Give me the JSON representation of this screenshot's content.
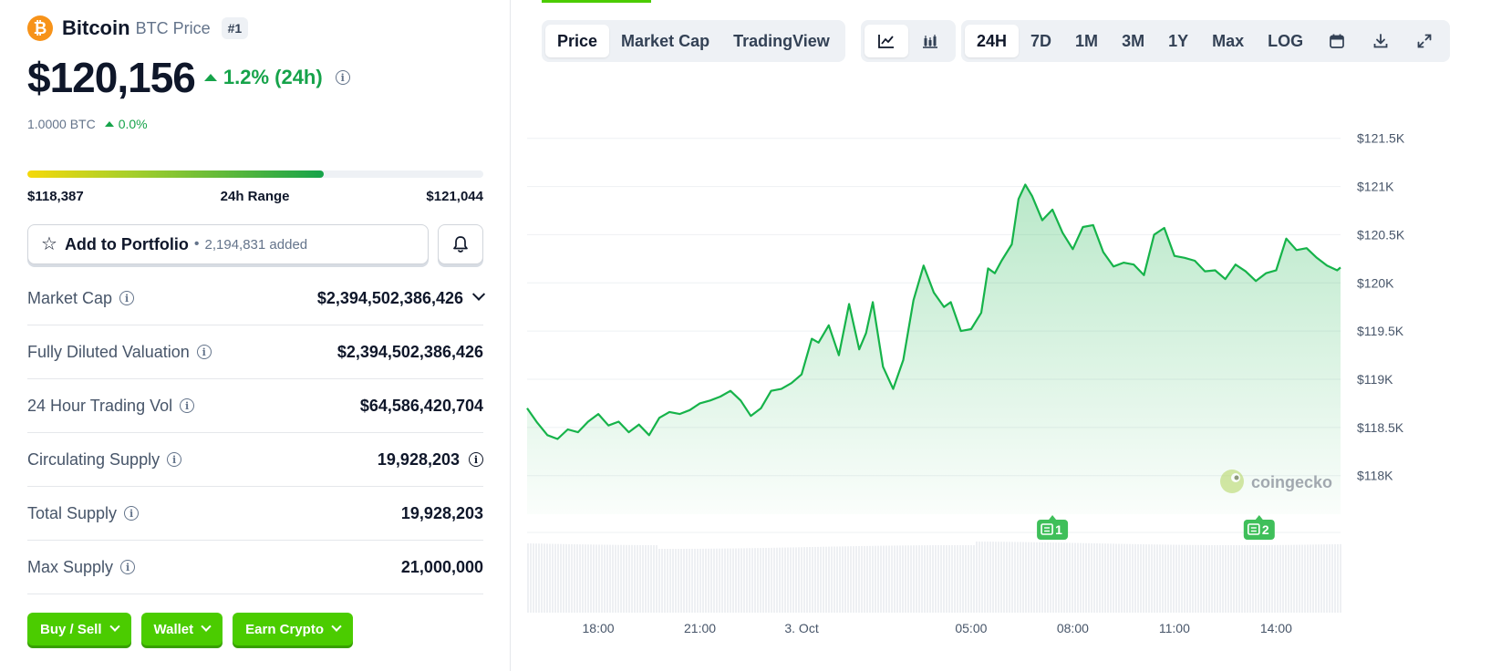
{
  "coin": {
    "logo_symbol": "₿",
    "name": "Bitcoin",
    "ticker_label": "BTC Price",
    "rank": "#1",
    "price": "$120,156",
    "change_24h": "1.2% (24h)",
    "btc_value": "1.0000 BTC",
    "btc_change": "0.0%"
  },
  "range": {
    "low": "$118,387",
    "label": "24h Range",
    "high": "$121,044",
    "fill_fraction": 0.65
  },
  "portfolio": {
    "label": "Add to Portfolio",
    "separator": "•",
    "count": "2,194,831 added"
  },
  "stats": [
    {
      "label": "Market Cap",
      "value": "$2,394,502,386,426"
    },
    {
      "label": "Fully Diluted Valuation",
      "value": "$2,394,502,386,426"
    },
    {
      "label": "24 Hour Trading Vol",
      "value": "$64,586,420,704"
    },
    {
      "label": "Circulating Supply",
      "value": "19,928,203"
    },
    {
      "label": "Total Supply",
      "value": "19,928,203"
    },
    {
      "label": "Max Supply",
      "value": "21,000,000"
    }
  ],
  "actions": {
    "buy_sell": "Buy / Sell",
    "wallet": "Wallet",
    "earn": "Earn Crypto"
  },
  "tabs": {
    "view": [
      "Price",
      "Market Cap",
      "TradingView"
    ],
    "ranges": [
      "24H",
      "7D",
      "1M",
      "3M",
      "1Y",
      "Max",
      "LOG"
    ],
    "active_view": "Price",
    "active_range": "24H"
  },
  "icons": [
    "line-chart-icon",
    "candlestick-icon",
    "calendar-icon",
    "download-icon",
    "expand-icon",
    "info-icon",
    "star-icon",
    "bell-icon"
  ],
  "colors": {
    "accent_green": "#4bcc00",
    "positive": "#16a34a",
    "line": "#16b34a",
    "bitcoin_orange": "#f7931a"
  },
  "watermark": "coingecko",
  "chart_data": {
    "type": "area",
    "ylim": [
      117600,
      121800
    ],
    "y_ticks": [
      "$121.5K",
      "$121K",
      "$120.5K",
      "$120K",
      "$119.5K",
      "$119K",
      "$118.5K",
      "$118K"
    ],
    "y_tick_values": [
      121500,
      121000,
      120500,
      120000,
      119500,
      119000,
      118500,
      118000
    ],
    "x_ticks": [
      "18:00",
      "21:00",
      "3. Oct",
      "05:00",
      "08:00",
      "11:00",
      "14:00"
    ],
    "x_tick_hours": [
      2.1,
      5.1,
      8.1,
      13.1,
      16.1,
      19.1,
      22.1
    ],
    "x_span_hours": 24,
    "price": [
      [
        0.0,
        118700
      ],
      [
        0.3,
        118550
      ],
      [
        0.6,
        118420
      ],
      [
        0.9,
        118380
      ],
      [
        1.2,
        118480
      ],
      [
        1.5,
        118450
      ],
      [
        1.8,
        118560
      ],
      [
        2.1,
        118640
      ],
      [
        2.4,
        118520
      ],
      [
        2.7,
        118560
      ],
      [
        3.0,
        118450
      ],
      [
        3.3,
        118530
      ],
      [
        3.6,
        118420
      ],
      [
        3.9,
        118600
      ],
      [
        4.2,
        118660
      ],
      [
        4.5,
        118640
      ],
      [
        4.8,
        118680
      ],
      [
        5.1,
        118750
      ],
      [
        5.4,
        118780
      ],
      [
        5.7,
        118820
      ],
      [
        6.0,
        118880
      ],
      [
        6.3,
        118780
      ],
      [
        6.6,
        118620
      ],
      [
        6.9,
        118700
      ],
      [
        7.2,
        118880
      ],
      [
        7.5,
        118900
      ],
      [
        7.8,
        118960
      ],
      [
        8.1,
        119050
      ],
      [
        8.4,
        119420
      ],
      [
        8.6,
        119380
      ],
      [
        8.9,
        119560
      ],
      [
        9.2,
        119250
      ],
      [
        9.5,
        119780
      ],
      [
        9.8,
        119310
      ],
      [
        10.0,
        119480
      ],
      [
        10.2,
        119800
      ],
      [
        10.5,
        119130
      ],
      [
        10.8,
        118900
      ],
      [
        11.1,
        119200
      ],
      [
        11.4,
        119820
      ],
      [
        11.7,
        120180
      ],
      [
        12.0,
        119900
      ],
      [
        12.3,
        119750
      ],
      [
        12.5,
        119800
      ],
      [
        12.8,
        119500
      ],
      [
        13.1,
        119520
      ],
      [
        13.4,
        119690
      ],
      [
        13.6,
        120150
      ],
      [
        13.8,
        120100
      ],
      [
        14.0,
        120230
      ],
      [
        14.3,
        120400
      ],
      [
        14.5,
        120870
      ],
      [
        14.7,
        121020
      ],
      [
        14.9,
        120900
      ],
      [
        15.2,
        120650
      ],
      [
        15.5,
        120760
      ],
      [
        15.8,
        120520
      ],
      [
        16.1,
        120350
      ],
      [
        16.4,
        120580
      ],
      [
        16.7,
        120600
      ],
      [
        17.0,
        120320
      ],
      [
        17.3,
        120170
      ],
      [
        17.6,
        120210
      ],
      [
        17.9,
        120190
      ],
      [
        18.2,
        120080
      ],
      [
        18.5,
        120500
      ],
      [
        18.8,
        120570
      ],
      [
        19.1,
        120280
      ],
      [
        19.4,
        120260
      ],
      [
        19.7,
        120230
      ],
      [
        20.0,
        120120
      ],
      [
        20.3,
        120130
      ],
      [
        20.6,
        120040
      ],
      [
        20.9,
        120190
      ],
      [
        21.2,
        120120
      ],
      [
        21.5,
        120020
      ],
      [
        21.8,
        120100
      ],
      [
        22.1,
        120130
      ],
      [
        22.4,
        120460
      ],
      [
        22.7,
        120340
      ],
      [
        23.0,
        120360
      ],
      [
        23.3,
        120260
      ],
      [
        23.6,
        120180
      ],
      [
        23.9,
        120130
      ],
      [
        24.0,
        120160
      ]
    ],
    "events": [
      {
        "label": "1",
        "hour": 15.5
      },
      {
        "label": "2",
        "hour": 21.6
      }
    ]
  }
}
